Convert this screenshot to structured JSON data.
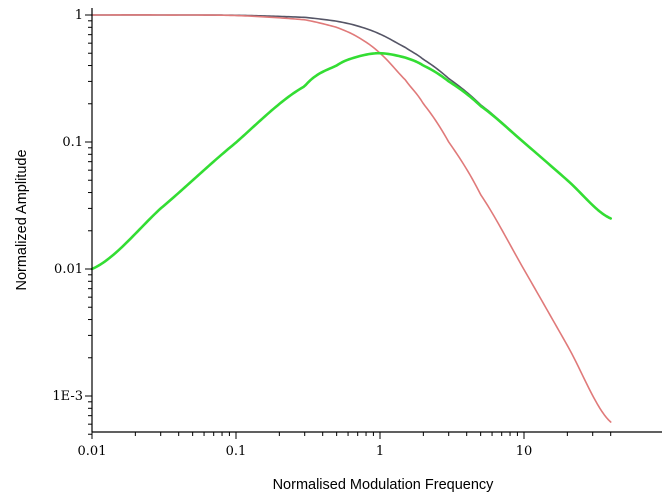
{
  "chart_data": {
    "type": "line",
    "title": "",
    "xlabel": "Normalised Modulation Frequency",
    "ylabel": "Normalized Amplitude",
    "xscale": "log",
    "yscale": "log",
    "xlim": [
      0.01,
      40
    ],
    "ylim": [
      0.0005,
      1
    ],
    "grid": false,
    "legend": "none",
    "x_ticks": [
      {
        "value": 0.01,
        "label": "0.01"
      },
      {
        "value": 0.1,
        "label": "0.1"
      },
      {
        "value": 1,
        "label": "1"
      },
      {
        "value": 10,
        "label": "10"
      }
    ],
    "y_ticks": [
      {
        "value": 1,
        "label": "1"
      },
      {
        "value": 0.1,
        "label": "0.1"
      },
      {
        "value": 0.01,
        "label": "0.01"
      },
      {
        "value": 0.001,
        "label": "1E-3"
      }
    ],
    "series": [
      {
        "color": "#555566",
        "x": [
          0.01,
          0.03,
          0.1,
          0.3,
          0.5,
          0.7,
          1,
          1.5,
          2,
          3,
          5,
          10,
          20,
          40
        ],
        "y": [
          1.0,
          1.0,
          0.995,
          0.958,
          0.894,
          0.819,
          0.707,
          0.555,
          0.447,
          0.316,
          0.196,
          0.0995,
          0.05,
          0.025
        ]
      },
      {
        "color": "#e07a7a",
        "x": [
          0.01,
          0.03,
          0.1,
          0.3,
          0.5,
          0.7,
          1,
          1.5,
          2,
          3,
          5,
          10,
          20,
          40
        ],
        "y": [
          1.0,
          1.0,
          0.99,
          0.917,
          0.8,
          0.671,
          0.5,
          0.308,
          0.2,
          0.1,
          0.0385,
          0.0099,
          0.0025,
          0.000624
        ]
      },
      {
        "color": "#33dd33",
        "x": [
          0.01,
          0.03,
          0.1,
          0.3,
          0.5,
          0.7,
          1,
          1.5,
          2,
          3,
          5,
          10,
          20,
          40
        ],
        "y": [
          0.01,
          0.03,
          0.099,
          0.275,
          0.4,
          0.47,
          0.5,
          0.462,
          0.4,
          0.3,
          0.192,
          0.099,
          0.05,
          0.025
        ]
      }
    ]
  }
}
